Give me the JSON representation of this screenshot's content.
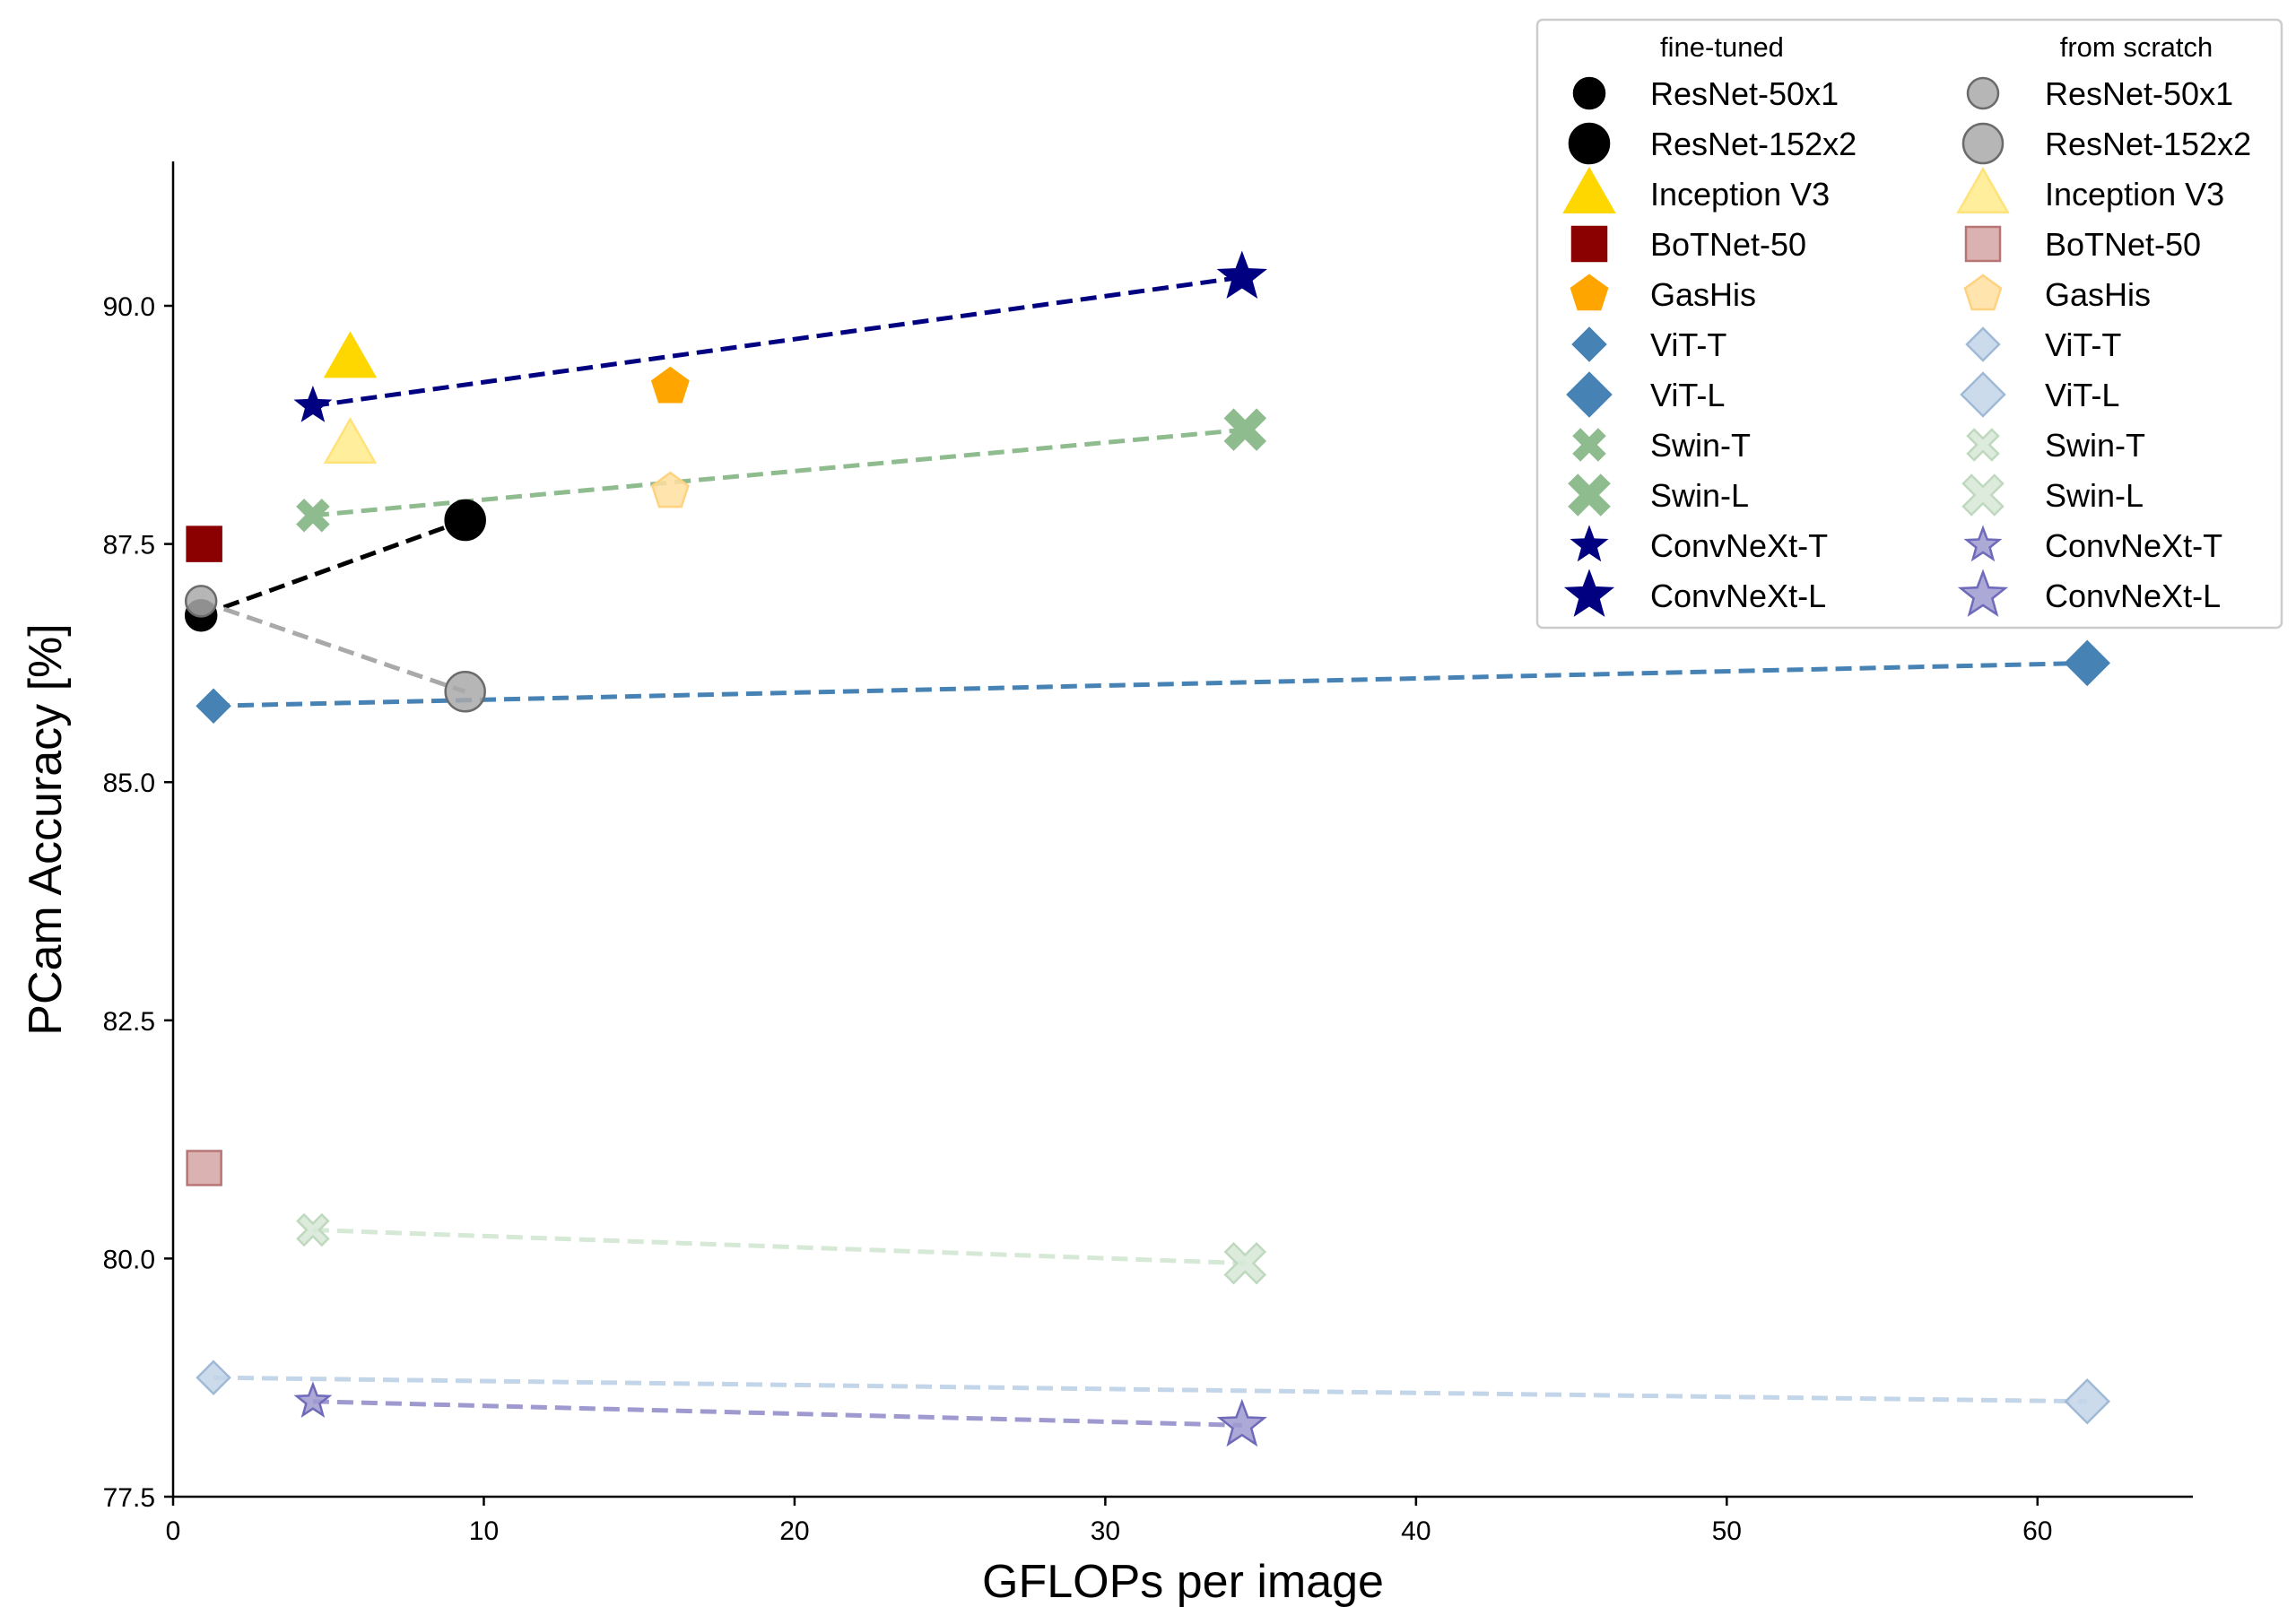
{
  "chart_data": {
    "type": "scatter",
    "title": "",
    "xlabel": "GFLOPs per image",
    "ylabel": "PCam Accuracy [%]",
    "xlim": [
      0,
      65
    ],
    "ylim": [
      77.5,
      91.5
    ],
    "xticks": [
      "0",
      "10",
      "20",
      "30",
      "40",
      "50",
      "60"
    ],
    "yticks": [
      "77.5",
      "80.0",
      "82.5",
      "85.0",
      "87.5",
      "90.0"
    ],
    "grid": false,
    "legend": {
      "placement": "top-right",
      "headers": [
        "fine-tuned",
        "from scratch"
      ]
    },
    "series": [
      {
        "name": "ResNet-50x1",
        "group": "fine-tuned",
        "marker": "circle",
        "color": "#000000",
        "points": [
          [
            0.9,
            86.75
          ]
        ]
      },
      {
        "name": "ResNet-152x2",
        "group": "fine-tuned",
        "marker": "circle",
        "color": "#000000",
        "points": [
          [
            9.4,
            87.75
          ]
        ]
      },
      {
        "name": "Inception V3",
        "group": "fine-tuned",
        "marker": "triangle",
        "color": "#FFD700",
        "points": [
          [
            5.7,
            89.45
          ]
        ]
      },
      {
        "name": "BoTNet-50",
        "group": "fine-tuned",
        "marker": "square",
        "color": "#8B0000",
        "points": [
          [
            1.0,
            87.5
          ]
        ]
      },
      {
        "name": "GasHis",
        "group": "fine-tuned",
        "marker": "pentagon",
        "color": "#FFA500",
        "points": [
          [
            16.0,
            89.15
          ]
        ]
      },
      {
        "name": "ViT-T",
        "group": "fine-tuned",
        "marker": "diamond",
        "color": "#4682B4",
        "points": [
          [
            1.3,
            85.8
          ]
        ]
      },
      {
        "name": "ViT-L",
        "group": "fine-tuned",
        "marker": "diamond",
        "color": "#4682B4",
        "points": [
          [
            61.6,
            86.25
          ]
        ]
      },
      {
        "name": "Swin-T",
        "group": "fine-tuned",
        "marker": "x",
        "color": "#8FBC8F",
        "points": [
          [
            4.5,
            87.8
          ]
        ]
      },
      {
        "name": "Swin-L",
        "group": "fine-tuned",
        "marker": "x",
        "color": "#8FBC8F",
        "points": [
          [
            34.5,
            88.7
          ]
        ]
      },
      {
        "name": "ConvNeXt-T",
        "group": "fine-tuned",
        "marker": "star",
        "color": "#000080",
        "points": [
          [
            4.5,
            88.95
          ]
        ]
      },
      {
        "name": "ConvNeXt-L",
        "group": "fine-tuned",
        "marker": "star",
        "color": "#000080",
        "points": [
          [
            34.4,
            90.3
          ]
        ]
      },
      {
        "name": "ResNet-50x1",
        "group": "from scratch",
        "marker": "circle",
        "color": "#A9A9A9",
        "points": [
          [
            0.9,
            86.9
          ]
        ]
      },
      {
        "name": "ResNet-152x2",
        "group": "from scratch",
        "marker": "circle",
        "color": "#A9A9A9",
        "points": [
          [
            9.4,
            85.95
          ]
        ]
      },
      {
        "name": "Inception V3",
        "group": "from scratch",
        "marker": "triangle",
        "color": "#FFEB8A",
        "points": [
          [
            5.7,
            88.55
          ]
        ]
      },
      {
        "name": "BoTNet-50",
        "group": "from scratch",
        "marker": "square",
        "color": "#D4A5A5",
        "points": [
          [
            1.0,
            80.95
          ]
        ]
      },
      {
        "name": "GasHis",
        "group": "from scratch",
        "marker": "pentagon",
        "color": "#FFDFA0",
        "points": [
          [
            16.0,
            88.05
          ]
        ]
      },
      {
        "name": "ViT-T",
        "group": "from scratch",
        "marker": "diamond",
        "color": "#C3D5E8",
        "points": [
          [
            1.3,
            78.75
          ]
        ]
      },
      {
        "name": "ViT-L",
        "group": "from scratch",
        "marker": "diamond",
        "color": "#C3D5E8",
        "points": [
          [
            61.6,
            78.5
          ]
        ]
      },
      {
        "name": "Swin-T",
        "group": "from scratch",
        "marker": "x",
        "color": "#D6E8D6",
        "points": [
          [
            4.5,
            80.3
          ]
        ]
      },
      {
        "name": "Swin-L",
        "group": "from scratch",
        "marker": "x",
        "color": "#D6E8D6",
        "points": [
          [
            34.5,
            79.95
          ]
        ]
      },
      {
        "name": "ConvNeXt-T",
        "group": "from scratch",
        "marker": "star",
        "color": "#9E9AD0",
        "points": [
          [
            4.5,
            78.5
          ]
        ]
      },
      {
        "name": "ConvNeXt-L",
        "group": "from scratch",
        "marker": "star",
        "color": "#9E9AD0",
        "points": [
          [
            34.4,
            78.25
          ]
        ]
      }
    ],
    "connecting_lines": [
      {
        "from": [
          "ResNet-50x1",
          "fine-tuned"
        ],
        "to": [
          "ResNet-152x2",
          "fine-tuned"
        ],
        "color": "#000000"
      },
      {
        "from": [
          "ResNet-50x1",
          "from scratch"
        ],
        "to": [
          "ResNet-152x2",
          "from scratch"
        ],
        "color": "#A9A9A9"
      },
      {
        "from": [
          "ViT-T",
          "fine-tuned"
        ],
        "to": [
          "ViT-L",
          "fine-tuned"
        ],
        "color": "#4682B4"
      },
      {
        "from": [
          "ViT-T",
          "from scratch"
        ],
        "to": [
          "ViT-L",
          "from scratch"
        ],
        "color": "#C3D5E8"
      },
      {
        "from": [
          "Swin-T",
          "fine-tuned"
        ],
        "to": [
          "Swin-L",
          "fine-tuned"
        ],
        "color": "#8FBC8F"
      },
      {
        "from": [
          "Swin-T",
          "from scratch"
        ],
        "to": [
          "Swin-L",
          "from scratch"
        ],
        "color": "#D6E8D6"
      },
      {
        "from": [
          "ConvNeXt-T",
          "fine-tuned"
        ],
        "to": [
          "ConvNeXt-L",
          "fine-tuned"
        ],
        "color": "#000080"
      },
      {
        "from": [
          "ConvNeXt-T",
          "from scratch"
        ],
        "to": [
          "ConvNeXt-L",
          "from scratch"
        ],
        "color": "#9E9AD0"
      }
    ]
  }
}
